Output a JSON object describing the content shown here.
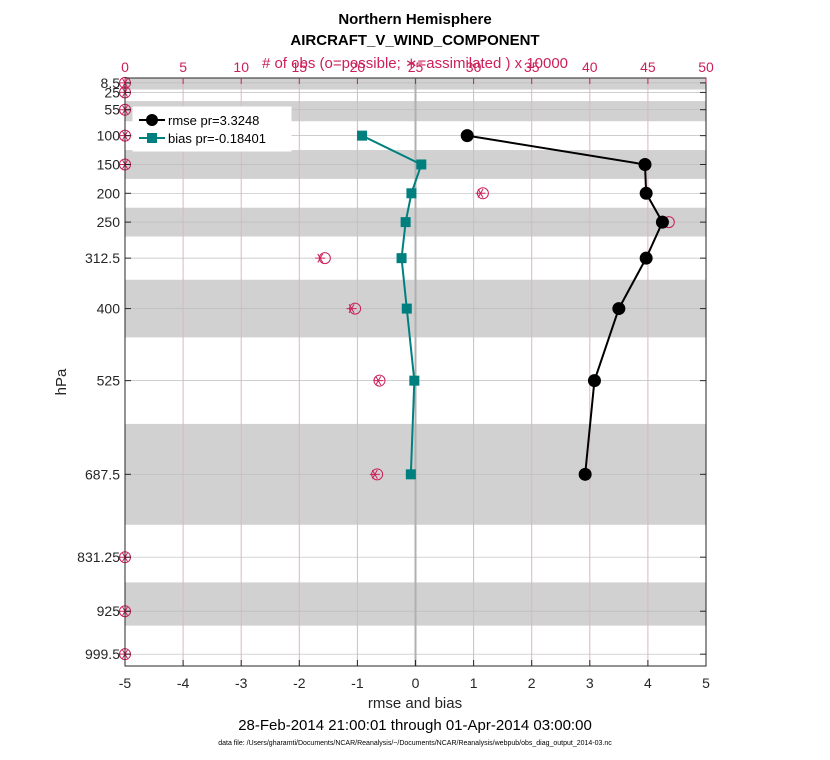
{
  "chart_data": {
    "type": "line",
    "title": "Northern Hemisphere",
    "subtitle": "AIRCRAFT_V_WIND_COMPONENT",
    "top_axis_label": "# of obs (o=possible; ∗=assimilated ) x 10000",
    "xlabel": "rmse and bias",
    "ylabel": "hPa",
    "date_range": "28-Feb-2014 21:00:01 through 01-Apr-2014 03:00:00",
    "footnote": "data file: /Users/gharamti/Documents/NCAR/Reanalysis/~/Documents/NCAR/Reanalysis/webpub/obs_diag_output_2014-03.nc",
    "xlim": [
      -5,
      5
    ],
    "x_ticks": [
      -5,
      -4,
      -3,
      -2,
      -1,
      0,
      1,
      2,
      3,
      4,
      5
    ],
    "x_tick_labels": [
      "-5",
      "-4",
      "-3",
      "-2",
      "-1",
      "0",
      "1",
      "2",
      "3",
      "4",
      "5"
    ],
    "top_xlim": [
      0,
      50
    ],
    "top_ticks": [
      0,
      5,
      10,
      15,
      20,
      25,
      30,
      35,
      40,
      45,
      50
    ],
    "top_tick_labels": [
      "0",
      "5",
      "10",
      "15",
      "20",
      "25",
      "30",
      "35",
      "40",
      "45",
      "50"
    ],
    "ylim": [
      0,
      1020
    ],
    "levels": [
      8.5,
      25,
      55,
      100,
      150,
      200,
      250,
      312.5,
      400,
      525,
      687.5,
      831.25,
      925,
      999.5
    ],
    "level_labels": [
      "8.5",
      "25",
      "55",
      "100",
      "150",
      "200",
      "250",
      "312.5",
      "400",
      "525",
      "687.5",
      "831.25",
      "925",
      "999.5"
    ],
    "shaded_bands": [
      [
        0,
        20
      ],
      [
        40,
        75
      ],
      [
        125,
        175
      ],
      [
        225,
        275
      ],
      [
        350,
        450
      ],
      [
        600,
        775
      ],
      [
        875,
        950
      ]
    ],
    "series": [
      {
        "name": "rmse",
        "legend": "rmse pr=3.3248",
        "color": "#000000",
        "marker": "circle",
        "points": [
          {
            "level": 100,
            "value": 0.89
          },
          {
            "level": 150,
            "value": 3.95
          },
          {
            "level": 200,
            "value": 3.97
          },
          {
            "level": 250,
            "value": 4.25
          },
          {
            "level": 312.5,
            "value": 3.97
          },
          {
            "level": 400,
            "value": 3.5
          },
          {
            "level": 525,
            "value": 3.08
          },
          {
            "level": 687.5,
            "value": 2.92
          }
        ]
      },
      {
        "name": "bias",
        "legend": "bias pr=-0.18401",
        "color": "#007f7f",
        "marker": "square",
        "points": [
          {
            "level": 100,
            "value": -0.92
          },
          {
            "level": 150,
            "value": 0.1
          },
          {
            "level": 200,
            "value": -0.07
          },
          {
            "level": 250,
            "value": -0.17
          },
          {
            "level": 312.5,
            "value": -0.24
          },
          {
            "level": 400,
            "value": -0.15
          },
          {
            "level": 525,
            "value": -0.02
          },
          {
            "level": 687.5,
            "value": -0.08
          }
        ]
      }
    ],
    "obs_counts": {
      "color": "#cc1f5a",
      "possible": [
        {
          "level": 8.5,
          "count": 0
        },
        {
          "level": 25,
          "count": 0
        },
        {
          "level": 55,
          "count": 0
        },
        {
          "level": 100,
          "count": 0
        },
        {
          "level": 150,
          "count": 0
        },
        {
          "level": 200,
          "count": 30.8
        },
        {
          "level": 250,
          "count": 46.8
        },
        {
          "level": 312.5,
          "count": 17.2
        },
        {
          "level": 400,
          "count": 19.8
        },
        {
          "level": 525,
          "count": 21.9
        },
        {
          "level": 687.5,
          "count": 21.7
        },
        {
          "level": 831.25,
          "count": 0
        },
        {
          "level": 925,
          "count": 0
        },
        {
          "level": 999.5,
          "count": 0
        }
      ],
      "assimilated": [
        {
          "level": 8.5,
          "count": 0
        },
        {
          "level": 25,
          "count": 0
        },
        {
          "level": 55,
          "count": 0
        },
        {
          "level": 100,
          "count": 0
        },
        {
          "level": 150,
          "count": 0
        },
        {
          "level": 200,
          "count": 30.6
        },
        {
          "level": 250,
          "count": 46.4
        },
        {
          "level": 312.5,
          "count": 16.8
        },
        {
          "level": 400,
          "count": 19.5
        },
        {
          "level": 525,
          "count": 21.8
        },
        {
          "level": 687.5,
          "count": 21.5
        },
        {
          "level": 831.25,
          "count": 0
        },
        {
          "level": 925,
          "count": 0
        },
        {
          "level": 999.5,
          "count": 0
        }
      ]
    }
  }
}
